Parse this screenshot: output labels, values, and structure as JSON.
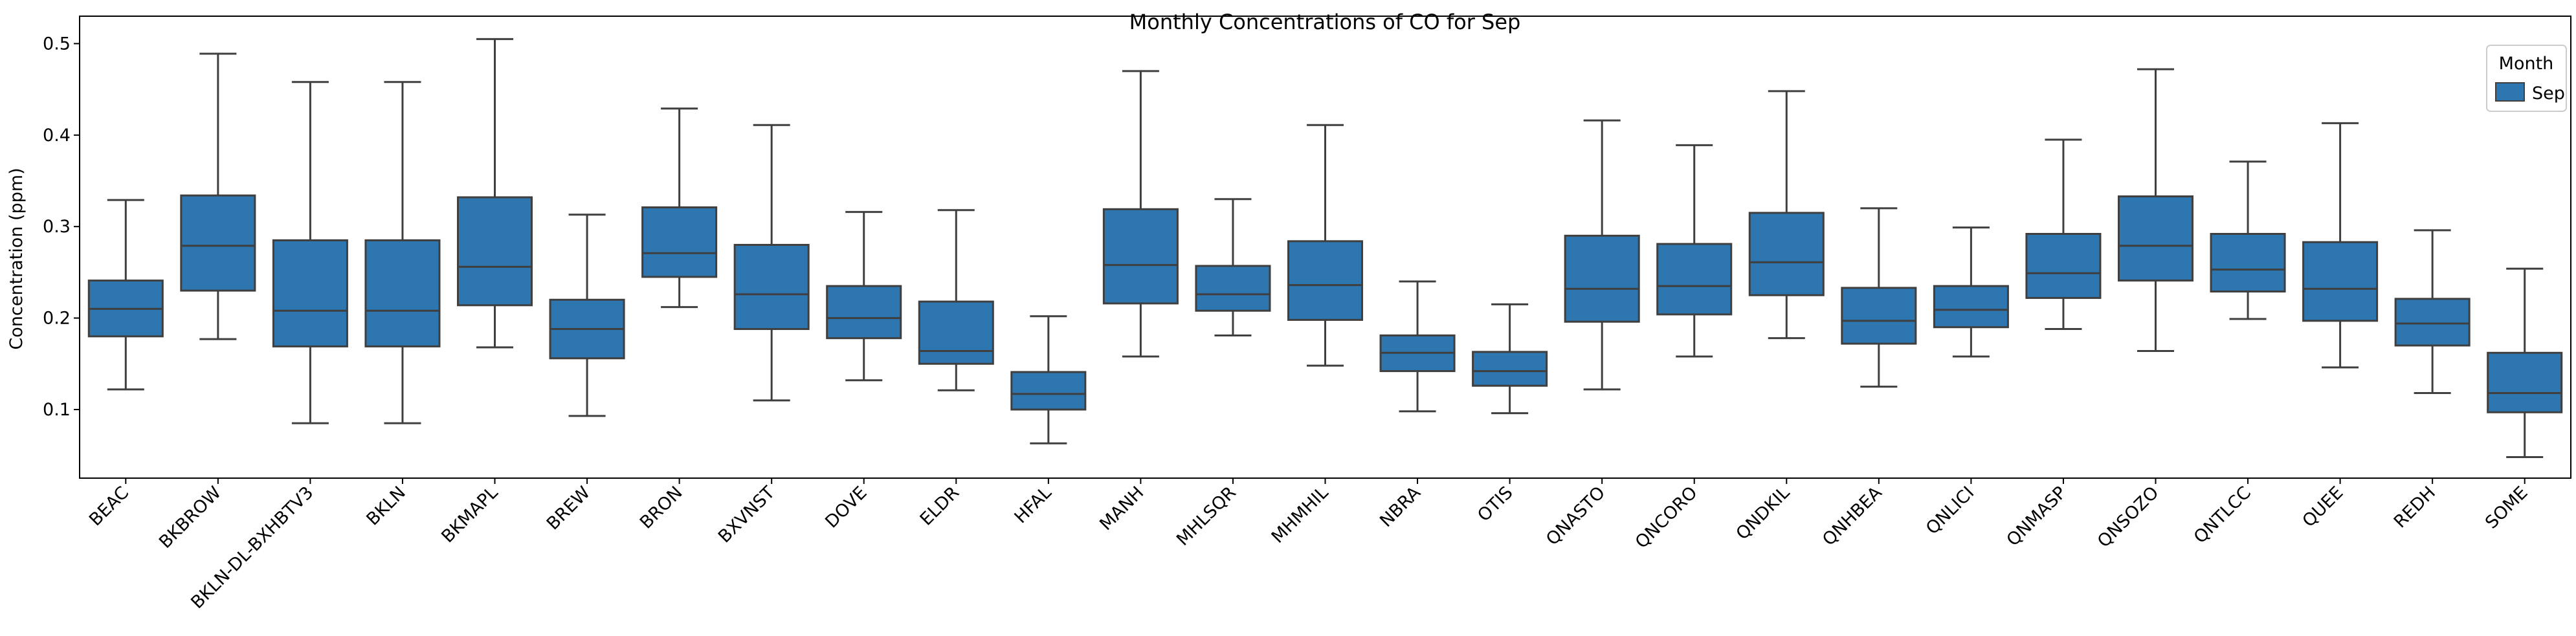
{
  "chart_data": {
    "type": "box",
    "title": "Monthly Concentrations of CO for Sep",
    "xlabel": "",
    "ylabel": "Concentration (ppm)",
    "ylim": [
      0.025,
      0.53
    ],
    "yticks": [
      0.1,
      0.2,
      0.3,
      0.4,
      0.5
    ],
    "ytick_labels": [
      "0.1",
      "0.2",
      "0.3",
      "0.4",
      "0.5"
    ],
    "grid": false,
    "legend": {
      "title": "Month",
      "entries": [
        "Sep"
      ],
      "position": "top-right"
    },
    "series": [
      {
        "name": "Sep",
        "color": "#2e76b0",
        "boxes": [
          {
            "category": "BEAC",
            "whisker_low": 0.122,
            "q1": 0.18,
            "median": 0.21,
            "q3": 0.241,
            "whisker_high": 0.329
          },
          {
            "category": "BKBROW",
            "whisker_low": 0.177,
            "q1": 0.23,
            "median": 0.279,
            "q3": 0.334,
            "whisker_high": 0.489
          },
          {
            "category": "BKLN-DL-BXHBTV3",
            "whisker_low": 0.085,
            "q1": 0.169,
            "median": 0.208,
            "q3": 0.285,
            "whisker_high": 0.458
          },
          {
            "category": "BKLN",
            "whisker_low": 0.085,
            "q1": 0.169,
            "median": 0.208,
            "q3": 0.285,
            "whisker_high": 0.458
          },
          {
            "category": "BKMAPL",
            "whisker_low": 0.168,
            "q1": 0.214,
            "median": 0.256,
            "q3": 0.332,
            "whisker_high": 0.505
          },
          {
            "category": "BREW",
            "whisker_low": 0.093,
            "q1": 0.156,
            "median": 0.188,
            "q3": 0.22,
            "whisker_high": 0.313
          },
          {
            "category": "BRON",
            "whisker_low": 0.212,
            "q1": 0.245,
            "median": 0.271,
            "q3": 0.321,
            "whisker_high": 0.429
          },
          {
            "category": "BXVNST",
            "whisker_low": 0.11,
            "q1": 0.188,
            "median": 0.226,
            "q3": 0.28,
            "whisker_high": 0.411
          },
          {
            "category": "DOVE",
            "whisker_low": 0.132,
            "q1": 0.178,
            "median": 0.2,
            "q3": 0.235,
            "whisker_high": 0.316
          },
          {
            "category": "ELDR",
            "whisker_low": 0.121,
            "q1": 0.15,
            "median": 0.164,
            "q3": 0.218,
            "whisker_high": 0.318
          },
          {
            "category": "HFAL",
            "whisker_low": 0.063,
            "q1": 0.1,
            "median": 0.117,
            "q3": 0.141,
            "whisker_high": 0.202
          },
          {
            "category": "MANH",
            "whisker_low": 0.158,
            "q1": 0.216,
            "median": 0.258,
            "q3": 0.319,
            "whisker_high": 0.47
          },
          {
            "category": "MHLSQR",
            "whisker_low": 0.181,
            "q1": 0.208,
            "median": 0.226,
            "q3": 0.257,
            "whisker_high": 0.33
          },
          {
            "category": "MHMHIL",
            "whisker_low": 0.148,
            "q1": 0.198,
            "median": 0.236,
            "q3": 0.284,
            "whisker_high": 0.411
          },
          {
            "category": "NBRA",
            "whisker_low": 0.098,
            "q1": 0.142,
            "median": 0.162,
            "q3": 0.181,
            "whisker_high": 0.24
          },
          {
            "category": "OTIS",
            "whisker_low": 0.096,
            "q1": 0.126,
            "median": 0.142,
            "q3": 0.163,
            "whisker_high": 0.215
          },
          {
            "category": "QNASTO",
            "whisker_low": 0.122,
            "q1": 0.196,
            "median": 0.232,
            "q3": 0.29,
            "whisker_high": 0.416
          },
          {
            "category": "QNCORO",
            "whisker_low": 0.158,
            "q1": 0.204,
            "median": 0.235,
            "q3": 0.281,
            "whisker_high": 0.389
          },
          {
            "category": "QNDKIL",
            "whisker_low": 0.178,
            "q1": 0.225,
            "median": 0.261,
            "q3": 0.315,
            "whisker_high": 0.448
          },
          {
            "category": "QNHBEA",
            "whisker_low": 0.125,
            "q1": 0.172,
            "median": 0.197,
            "q3": 0.233,
            "whisker_high": 0.32
          },
          {
            "category": "QNLICI",
            "whisker_low": 0.158,
            "q1": 0.19,
            "median": 0.209,
            "q3": 0.235,
            "whisker_high": 0.299
          },
          {
            "category": "QNMASP",
            "whisker_low": 0.188,
            "q1": 0.222,
            "median": 0.249,
            "q3": 0.292,
            "whisker_high": 0.395
          },
          {
            "category": "QNSOZO",
            "whisker_low": 0.164,
            "q1": 0.241,
            "median": 0.279,
            "q3": 0.333,
            "whisker_high": 0.472
          },
          {
            "category": "QNTLCC",
            "whisker_low": 0.199,
            "q1": 0.229,
            "median": 0.253,
            "q3": 0.292,
            "whisker_high": 0.371
          },
          {
            "category": "QUEE",
            "whisker_low": 0.146,
            "q1": 0.197,
            "median": 0.232,
            "q3": 0.283,
            "whisker_high": 0.413
          },
          {
            "category": "REDH",
            "whisker_low": 0.118,
            "q1": 0.17,
            "median": 0.194,
            "q3": 0.221,
            "whisker_high": 0.296
          },
          {
            "category": "SOME",
            "whisker_low": 0.048,
            "q1": 0.097,
            "median": 0.118,
            "q3": 0.162,
            "whisker_high": 0.254
          }
        ]
      }
    ]
  }
}
